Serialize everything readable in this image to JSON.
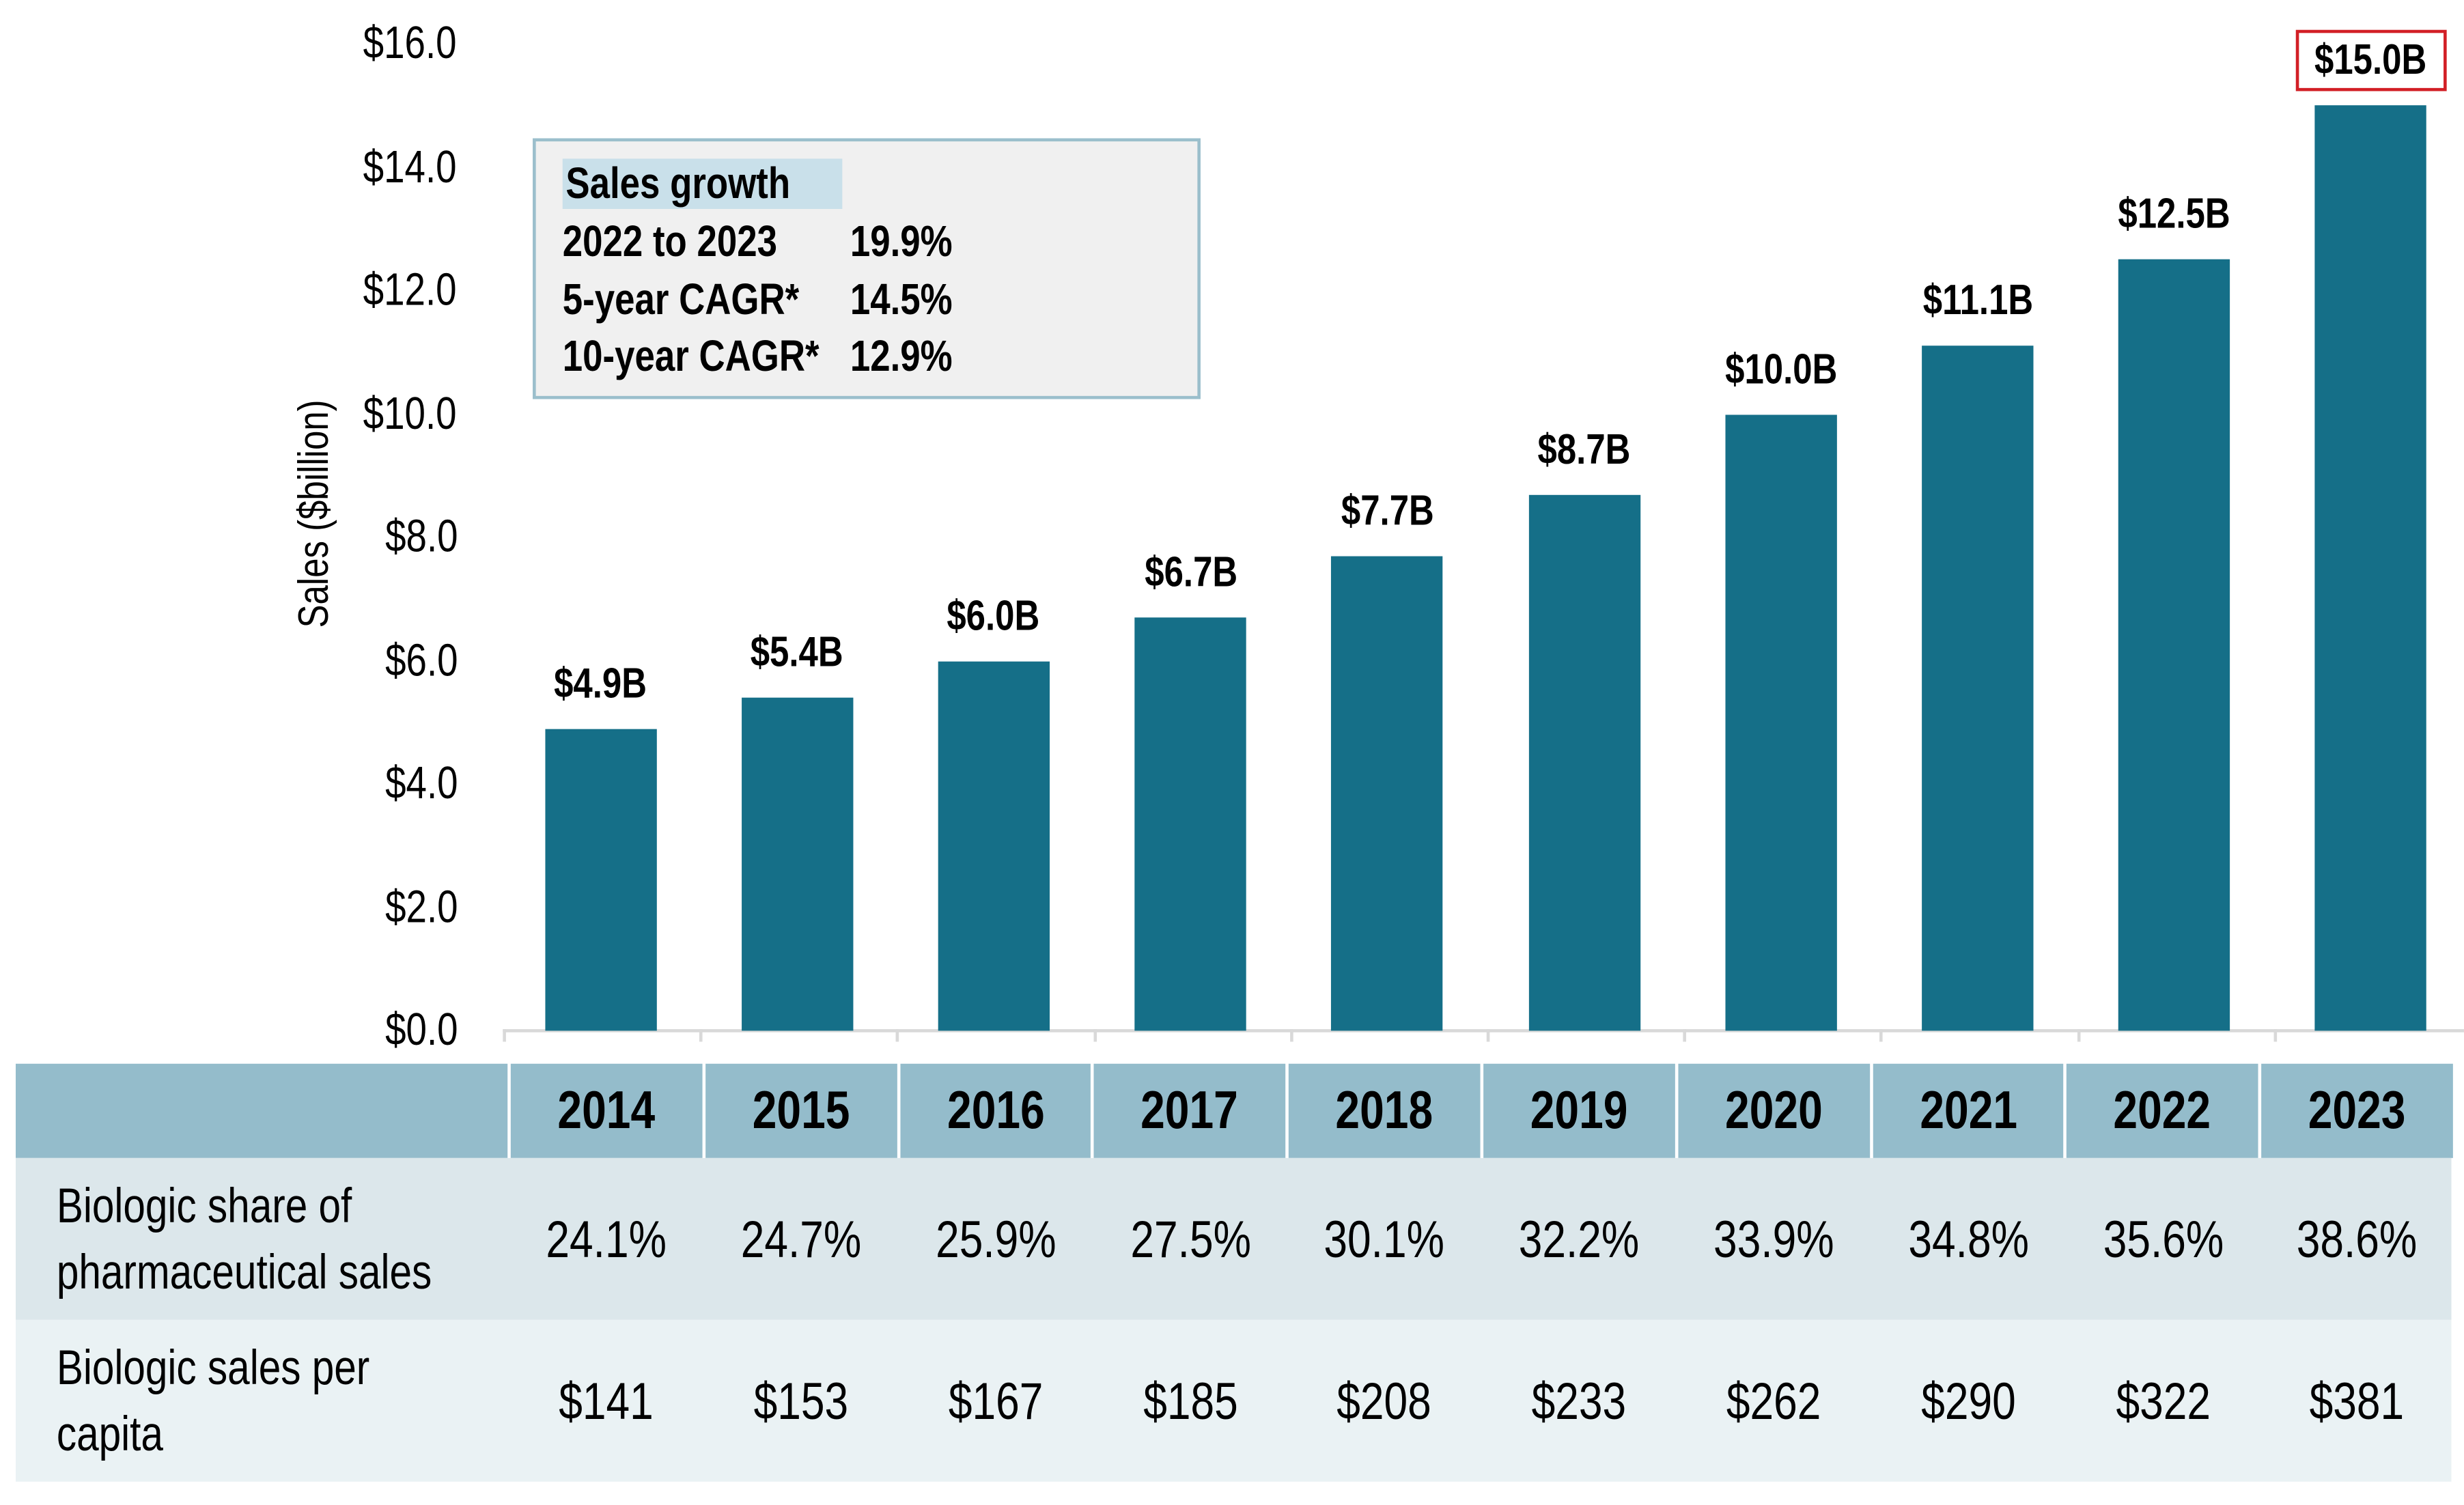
{
  "chart_data": {
    "type": "bar",
    "ylabel": "Sales ($billion)",
    "ylim": [
      0,
      16
    ],
    "yticks": [
      "$0.0",
      "$2.0",
      "$4.0",
      "$6.0",
      "$8.0",
      "$10.0",
      "$12.0",
      "$14.0",
      "$16.0"
    ],
    "categories": [
      "2014",
      "2015",
      "2016",
      "2017",
      "2018",
      "2019",
      "2020",
      "2021",
      "2022",
      "2023"
    ],
    "values": [
      4.9,
      5.4,
      6.0,
      6.7,
      7.7,
      8.7,
      10.0,
      11.1,
      12.5,
      15.0
    ],
    "data_labels": [
      "$4.9B",
      "$5.4B",
      "$6.0B",
      "$6.7B",
      "$7.7B",
      "$8.7B",
      "$10.0B",
      "$11.1B",
      "$12.5B",
      "$15.0B"
    ],
    "highlighted_label": "$15.0B",
    "grid": false,
    "bar_color": "#156f88",
    "highlight_color": "#d21f26"
  },
  "growth_box": {
    "title": "Sales growth",
    "rows": [
      {
        "label": "2022 to 2023",
        "value": "19.9%"
      },
      {
        "label": "5-year CAGR*",
        "value": "14.5%"
      },
      {
        "label": "10-year CAGR*",
        "value": "12.9%"
      }
    ]
  },
  "table": {
    "years": [
      "2014",
      "2015",
      "2016",
      "2017",
      "2018",
      "2019",
      "2020",
      "2021",
      "2022",
      "2023"
    ],
    "rows": [
      {
        "label_lines": [
          "Biologic share of",
          "pharmaceutical sales"
        ],
        "values": [
          "24.1%",
          "24.7%",
          "25.9%",
          "27.5%",
          "30.1%",
          "32.2%",
          "33.9%",
          "34.8%",
          "35.6%",
          "38.6%"
        ]
      },
      {
        "label_lines": [
          "Biologic sales per",
          "capita"
        ],
        "values": [
          "$141",
          "$153",
          "$167",
          "$185",
          "$208",
          "$233",
          "$262",
          "$290",
          "$322",
          "$381"
        ]
      }
    ]
  },
  "colors": {
    "header_bg": "#94bccb",
    "row1_bg": "#dce7eb",
    "row2_bg": "#eaf2f4",
    "box_border": "#9bbfcc",
    "box_bg": "#f0f0f0"
  }
}
